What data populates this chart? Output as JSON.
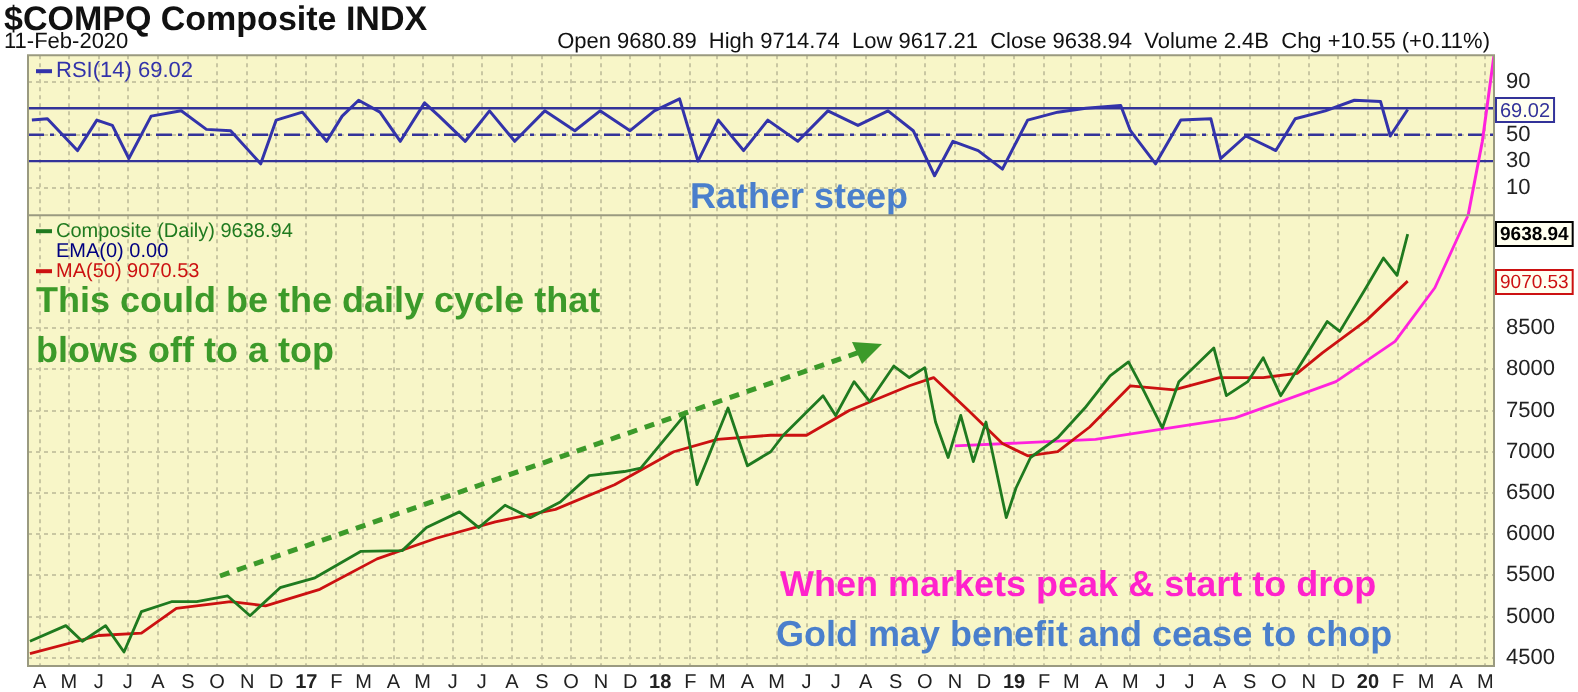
{
  "chart_data": [
    {
      "type": "line",
      "title": "$COMPQ Composite INDX",
      "subtitle": "11-Feb-2020",
      "annotations": [
        "Open 9680.89  High 9714.74  Low 9617.21  Close 9638.94  Volume 2.4B  Chg +10.55 (+0.11%)",
        "Rather steep",
        "69.02"
      ],
      "x": [
        "2016-03-24",
        "2016-04-09",
        "2016-05-10",
        "2016-05-30",
        "2016-06-15",
        "2016-07-02",
        "2016-07-25",
        "2016-08-25",
        "2016-09-20",
        "2016-10-15",
        "2016-11-15",
        "2016-12-01",
        "2016-12-28",
        "2017-01-22",
        "2017-02-07",
        "2017-02-24",
        "2017-03-18",
        "2017-04-08",
        "2017-05-03",
        "2017-05-18",
        "2017-06-14",
        "2017-07-09",
        "2017-08-04",
        "2017-09-04",
        "2017-10-05",
        "2017-10-31",
        "2017-12-01",
        "2017-12-26",
        "2018-01-21",
        "2018-02-09",
        "2018-03-02",
        "2018-03-28",
        "2018-04-22",
        "2018-05-23",
        "2018-06-23",
        "2018-07-24",
        "2018-08-24",
        "2018-09-19",
        "2018-10-11",
        "2018-10-30",
        "2018-11-25",
        "2018-12-20",
        "2019-01-15",
        "2019-02-15",
        "2019-03-16",
        "2019-04-21",
        "2019-05-01",
        "2019-05-27",
        "2019-06-22",
        "2019-07-23",
        "2019-08-02",
        "2019-08-28",
        "2019-09-28",
        "2019-10-18",
        "2019-11-18",
        "2019-12-18",
        "2020-01-14",
        "2020-01-24",
        "2020-02-11"
      ],
      "series": [
        {
          "name": "RSI(14) 69.02",
          "color": "#3333aa",
          "values": [
            61,
            62,
            38,
            61,
            57,
            32,
            64,
            68,
            54,
            53,
            28,
            61,
            67,
            45,
            64,
            76,
            67,
            45,
            74,
            64,
            45,
            68,
            45,
            68,
            53,
            68,
            53,
            68,
            77,
            30,
            61,
            38,
            61,
            45,
            68,
            57,
            68,
            53,
            19,
            45,
            38,
            24,
            61,
            67,
            70,
            72,
            53,
            28,
            61,
            62,
            32,
            49,
            38,
            62,
            68,
            76,
            75,
            49,
            69
          ]
        },
        {
          "type": "line",
          "color": "#ff22dd",
          "x": [
            "2020-04-13",
            "2020-04-28",
            "2020-05-10"
          ],
          "values": [
            -12,
            45,
            110
          ]
        }
      ],
      "xlim": [
        "2016-03-20",
        "2020-05-10"
      ],
      "ylim": [
        -12,
        110
      ],
      "yticks": [
        10,
        30,
        50,
        90
      ],
      "xticks": [
        {
          "value": "2016-04",
          "label": null
        },
        {
          "value": "2016-05",
          "label": null
        },
        {
          "value": "2016-06",
          "label": null
        },
        {
          "value": "2016-07",
          "label": null
        },
        {
          "value": "2016-08",
          "label": null
        },
        {
          "value": "2016-09",
          "label": null
        },
        {
          "value": "2016-10",
          "label": null
        },
        {
          "value": "2016-11",
          "label": null
        },
        {
          "value": "2016-12",
          "label": null
        },
        {
          "value": "2017-01",
          "label": null
        },
        {
          "value": "2017-02",
          "label": null
        },
        {
          "value": "2017-03",
          "label": null
        },
        {
          "value": "2017-04",
          "label": null
        },
        {
          "value": "2017-05",
          "label": null
        },
        {
          "value": "2017-06",
          "label": null
        },
        {
          "value": "2017-07",
          "label": null
        },
        {
          "value": "2017-08",
          "label": null
        },
        {
          "value": "2017-09",
          "label": null
        },
        {
          "value": "2017-10",
          "label": null
        },
        {
          "value": "2017-11",
          "label": null
        },
        {
          "value": "2017-12",
          "label": null
        },
        {
          "value": "2018-01",
          "label": null
        },
        {
          "value": "2018-02",
          "label": null
        },
        {
          "value": "2018-03",
          "label": null
        },
        {
          "value": "2018-04",
          "label": null
        },
        {
          "value": "2018-05",
          "label": null
        },
        {
          "value": "2018-06",
          "label": null
        },
        {
          "value": "2018-07",
          "label": null
        },
        {
          "value": "2018-08",
          "label": null
        },
        {
          "value": "2018-09",
          "label": null
        },
        {
          "value": "2018-10",
          "label": null
        },
        {
          "value": "2018-11",
          "label": null
        },
        {
          "value": "2018-12",
          "label": null
        },
        {
          "value": "2019-01",
          "label": null
        },
        {
          "value": "2019-02",
          "label": null
        },
        {
          "value": "2019-03",
          "label": null
        },
        {
          "value": "2019-04",
          "label": null
        },
        {
          "value": "2019-05",
          "label": null
        },
        {
          "value": "2019-06",
          "label": null
        },
        {
          "value": "2019-07",
          "label": null
        },
        {
          "value": "2019-08",
          "label": null
        },
        {
          "value": "2019-09",
          "label": null
        },
        {
          "value": "2019-10",
          "label": null
        },
        {
          "value": "2019-11",
          "label": null
        },
        {
          "value": "2019-12",
          "label": null
        },
        {
          "value": "2020-01",
          "label": null
        },
        {
          "value": "2020-02",
          "label": null
        },
        {
          "value": "2020-03",
          "label": null
        },
        {
          "value": "2020-04",
          "label": null
        },
        {
          "value": "2020-05",
          "label": null
        }
      ],
      "ref_lines": [
        {
          "axis": "y",
          "value": 70,
          "color": "#333399",
          "line_style": "solid"
        },
        {
          "axis": "y",
          "value": 30,
          "color": "#333399",
          "line_style": "solid"
        },
        {
          "axis": "y",
          "value": 50,
          "color": "#333399",
          "line_style": "dashed"
        }
      ],
      "grid": true,
      "legend": "top left",
      "tick_labels": "y",
      "marker": "none",
      "line_style": "solid"
    },
    {
      "type": "line",
      "annotations": [
        "EMA(0) 0.00",
        "This could be the daily cycle that blows off to a top",
        "When markets peak & start to drop",
        "Gold may benefit and cease to chop",
        "9638.94",
        "9070.53"
      ],
      "series": [
        {
          "name": "Composite (Daily) 9638.94",
          "color": "#1f7a1f",
          "x": [
            "2016-03-22",
            "2016-04-28",
            "2016-05-15",
            "2016-06-08",
            "2016-06-27",
            "2016-07-15",
            "2016-08-15",
            "2016-09-10",
            "2016-10-12",
            "2016-11-04",
            "2016-12-05",
            "2017-01-10",
            "2017-02-26",
            "2017-04-10",
            "2017-05-05",
            "2017-06-08",
            "2017-06-28",
            "2017-07-25",
            "2017-08-20",
            "2017-09-20",
            "2017-10-20",
            "2017-11-25",
            "2017-12-12",
            "2018-01-26",
            "2018-02-08",
            "2018-03-12",
            "2018-04-01",
            "2018-04-25",
            "2018-05-08",
            "2018-06-18",
            "2018-07-01",
            "2018-07-20",
            "2018-08-05",
            "2018-08-30",
            "2018-09-15",
            "2018-10-01",
            "2018-10-12",
            "2018-10-25",
            "2018-11-07",
            "2018-11-20",
            "2018-12-03",
            "2018-12-24",
            "2019-01-03",
            "2019-01-18",
            "2019-02-15",
            "2019-03-15",
            "2019-04-10",
            "2019-04-29",
            "2019-05-13",
            "2019-06-03",
            "2019-06-20",
            "2019-07-26",
            "2019-08-08",
            "2019-08-30",
            "2019-09-15",
            "2019-10-03",
            "2019-10-25",
            "2019-11-20",
            "2019-12-03",
            "2019-12-30",
            "2020-01-17",
            "2020-01-31",
            "2020-02-11"
          ],
          "values": [
            4700,
            4890,
            4700,
            4890,
            4570,
            5060,
            5180,
            5180,
            5250,
            5010,
            5350,
            5470,
            5790,
            5800,
            6080,
            6270,
            6080,
            6350,
            6200,
            6390,
            6710,
            6760,
            6800,
            7440,
            6600,
            7530,
            6830,
            7000,
            7200,
            7680,
            7440,
            7850,
            7610,
            8040,
            7900,
            8020,
            7360,
            6930,
            7440,
            6880,
            7360,
            6200,
            6560,
            6930,
            7170,
            7530,
            7920,
            8090,
            7780,
            7290,
            7850,
            8260,
            7680,
            7850,
            8140,
            7680,
            8090,
            8580,
            8460,
            8990,
            9350,
            9140,
            9640
          ]
        },
        {
          "name": "MA(50) 9070.53",
          "color": "#cc1111",
          "x": [
            "2016-03-22",
            "2016-06-01",
            "2016-07-15",
            "2016-08-20",
            "2016-10-15",
            "2016-11-20",
            "2017-01-15",
            "2017-03-15",
            "2017-05-15",
            "2017-07-15",
            "2017-09-15",
            "2017-11-15",
            "2018-01-15",
            "2018-03-01",
            "2018-04-25",
            "2018-06-01",
            "2018-07-15",
            "2018-09-15",
            "2018-10-10",
            "2018-11-15",
            "2018-12-20",
            "2019-01-15",
            "2019-02-15",
            "2019-03-20",
            "2019-05-01",
            "2019-06-15",
            "2019-08-01",
            "2019-09-15",
            "2019-10-20",
            "2019-11-15",
            "2019-12-31",
            "2020-02-11"
          ],
          "values": [
            4550,
            4770,
            4800,
            5100,
            5180,
            5130,
            5330,
            5700,
            5950,
            6150,
            6300,
            6600,
            7000,
            7150,
            7200,
            7200,
            7500,
            7800,
            7900,
            7500,
            7100,
            6950,
            7000,
            7300,
            7800,
            7750,
            7900,
            7900,
            7950,
            8200,
            8600,
            9070
          ]
        },
        {
          "type": "line",
          "color": "#ff22dd",
          "x": [
            "2018-11-01",
            "2019-03-26",
            "2019-08-17",
            "2019-11-29",
            "2020-01-29",
            "2020-03-10",
            "2020-04-10",
            "2020-04-13"
          ],
          "values": [
            7070,
            7150,
            7410,
            7850,
            8340,
            8990,
            9790,
            9860
          ]
        }
      ],
      "xlim": [
        "2016-03-20",
        "2020-05-10"
      ],
      "ylim": [
        4400,
        9870
      ],
      "yticks": [
        4500,
        5000,
        5500,
        6000,
        6500,
        7000,
        7500,
        8000,
        8500
      ],
      "xticks": [
        {
          "value": "2016-04",
          "label": "A"
        },
        {
          "value": "2016-05",
          "label": "M"
        },
        {
          "value": "2016-06",
          "label": "J"
        },
        {
          "value": "2016-07",
          "label": "J"
        },
        {
          "value": "2016-08",
          "label": "A"
        },
        {
          "value": "2016-09",
          "label": "S"
        },
        {
          "value": "2016-10",
          "label": "O"
        },
        {
          "value": "2016-11",
          "label": "N"
        },
        {
          "value": "2016-12",
          "label": "D"
        },
        {
          "value": "2017-01",
          "label": "17"
        },
        {
          "value": "2017-02",
          "label": "F"
        },
        {
          "value": "2017-03",
          "label": "M"
        },
        {
          "value": "2017-04",
          "label": "A"
        },
        {
          "value": "2017-05",
          "label": "M"
        },
        {
          "value": "2017-06",
          "label": "J"
        },
        {
          "value": "2017-07",
          "label": "J"
        },
        {
          "value": "2017-08",
          "label": "A"
        },
        {
          "value": "2017-09",
          "label": "S"
        },
        {
          "value": "2017-10",
          "label": "O"
        },
        {
          "value": "2017-11",
          "label": "N"
        },
        {
          "value": "2017-12",
          "label": "D"
        },
        {
          "value": "2018-01",
          "label": "18"
        },
        {
          "value": "2018-02",
          "label": "F"
        },
        {
          "value": "2018-03",
          "label": "M"
        },
        {
          "value": "2018-04",
          "label": "A"
        },
        {
          "value": "2018-05",
          "label": "M"
        },
        {
          "value": "2018-06",
          "label": "J"
        },
        {
          "value": "2018-07",
          "label": "J"
        },
        {
          "value": "2018-08",
          "label": "A"
        },
        {
          "value": "2018-09",
          "label": "S"
        },
        {
          "value": "2018-10",
          "label": "O"
        },
        {
          "value": "2018-11",
          "label": "N"
        },
        {
          "value": "2018-12",
          "label": "D"
        },
        {
          "value": "2019-01",
          "label": "19"
        },
        {
          "value": "2019-02",
          "label": "F"
        },
        {
          "value": "2019-03",
          "label": "M"
        },
        {
          "value": "2019-04",
          "label": "A"
        },
        {
          "value": "2019-05",
          "label": "M"
        },
        {
          "value": "2019-06",
          "label": "J"
        },
        {
          "value": "2019-07",
          "label": "J"
        },
        {
          "value": "2019-08",
          "label": "A"
        },
        {
          "value": "2019-09",
          "label": "S"
        },
        {
          "value": "2019-10",
          "label": "O"
        },
        {
          "value": "2019-11",
          "label": "N"
        },
        {
          "value": "2019-12",
          "label": "D"
        },
        {
          "value": "2020-01",
          "label": "20"
        },
        {
          "value": "2020-02",
          "label": "F"
        },
        {
          "value": "2020-03",
          "label": "M"
        },
        {
          "value": "2020-04",
          "label": "A"
        },
        {
          "value": "2020-05",
          "label": "M"
        }
      ],
      "grid": true,
      "legend": "top left",
      "marker": "none",
      "line_style": "solid"
    }
  ]
}
